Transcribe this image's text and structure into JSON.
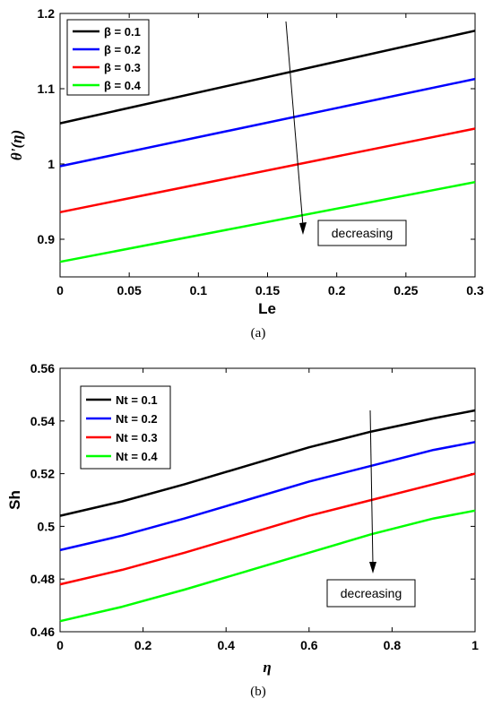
{
  "chart_data": [
    {
      "type": "line",
      "panel_label": "(a)",
      "xlabel": "Le",
      "ylabel": "θ'(η)",
      "xlim": [
        0,
        0.3
      ],
      "ylim": [
        0.85,
        1.2
      ],
      "xticks": [
        "0",
        "0.05",
        "0.1",
        "0.15",
        "0.2",
        "0.25",
        "0.3"
      ],
      "yticks": [
        "0.9",
        "1",
        "1.1",
        "1.2"
      ],
      "grid": false,
      "legend_position": "top-left",
      "annotation": "decreasing",
      "series": [
        {
          "name": "β = 0.1",
          "color": "#000000",
          "x": [
            0,
            0.3
          ],
          "y": [
            1.054,
            1.177
          ]
        },
        {
          "name": "β = 0.2",
          "color": "#0000ff",
          "x": [
            0,
            0.3
          ],
          "y": [
            0.997,
            1.113
          ]
        },
        {
          "name": "β = 0.3",
          "color": "#ff0000",
          "x": [
            0,
            0.3
          ],
          "y": [
            0.936,
            1.047
          ]
        },
        {
          "name": "β = 0.4",
          "color": "#00ff00",
          "x": [
            0,
            0.3
          ],
          "y": [
            0.87,
            0.976
          ]
        }
      ]
    },
    {
      "type": "line",
      "panel_label": "(b)",
      "xlabel": "η",
      "ylabel": "Sh",
      "xlim": [
        0,
        1
      ],
      "ylim": [
        0.46,
        0.56
      ],
      "xticks": [
        "0",
        "0.2",
        "0.4",
        "0.6",
        "0.8",
        "1"
      ],
      "yticks": [
        "0.46",
        "0.48",
        "0.5",
        "0.52",
        "0.54",
        "0.56"
      ],
      "grid": false,
      "legend_position": "top-left",
      "annotation": "decreasing",
      "series": [
        {
          "name": "Nt = 0.1",
          "color": "#000000",
          "x": [
            0,
            0.15,
            0.3,
            0.45,
            0.6,
            0.75,
            0.9,
            1.0
          ],
          "y": [
            0.504,
            0.5095,
            0.516,
            0.523,
            0.53,
            0.536,
            0.541,
            0.544
          ]
        },
        {
          "name": "Nt = 0.2",
          "color": "#0000ff",
          "x": [
            0,
            0.15,
            0.3,
            0.45,
            0.6,
            0.75,
            0.9,
            1.0
          ],
          "y": [
            0.491,
            0.4965,
            0.503,
            0.51,
            0.517,
            0.523,
            0.529,
            0.532
          ]
        },
        {
          "name": "Nt = 0.3",
          "color": "#ff0000",
          "x": [
            0,
            0.15,
            0.3,
            0.45,
            0.6,
            0.75,
            0.9,
            1.0
          ],
          "y": [
            0.478,
            0.4835,
            0.49,
            0.497,
            0.504,
            0.51,
            0.516,
            0.52
          ]
        },
        {
          "name": "Nt = 0.4",
          "color": "#00ff00",
          "x": [
            0,
            0.15,
            0.3,
            0.45,
            0.6,
            0.75,
            0.9,
            1.0
          ],
          "y": [
            0.464,
            0.4695,
            0.476,
            0.483,
            0.49,
            0.497,
            0.503,
            0.506
          ]
        }
      ]
    }
  ]
}
